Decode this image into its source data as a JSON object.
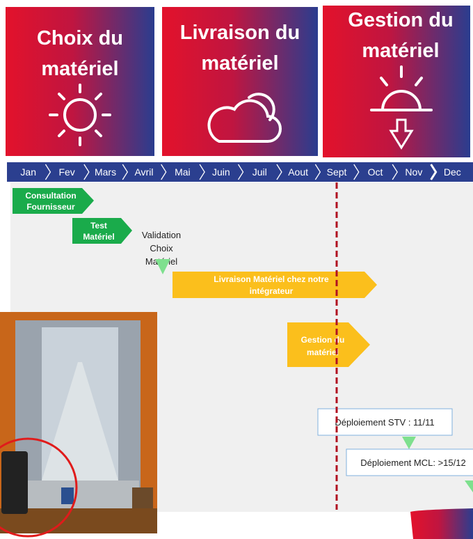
{
  "header": {
    "phases": [
      "Choix du matériel",
      "Livraison du matériel",
      "Gestion du matériel"
    ]
  },
  "timeline": {
    "months": [
      "Jan",
      "Fev",
      "Mars",
      "Avril",
      "Mai",
      "Juin",
      "Juil",
      "Aout",
      "Sept",
      "Oct",
      "Nov",
      "Dec"
    ]
  },
  "tasks": {
    "consultation": "Consultation Fournisseur",
    "test": "Test Matériel",
    "validation": "Validation Choix Matériel",
    "livraison": "Livraison Matériel chez notre intégrateur",
    "gestion": "Gestion du matériel",
    "stv": "Déploiement STV : 11/11",
    "mcl": "Déploiement MCL: >15/12"
  }
}
